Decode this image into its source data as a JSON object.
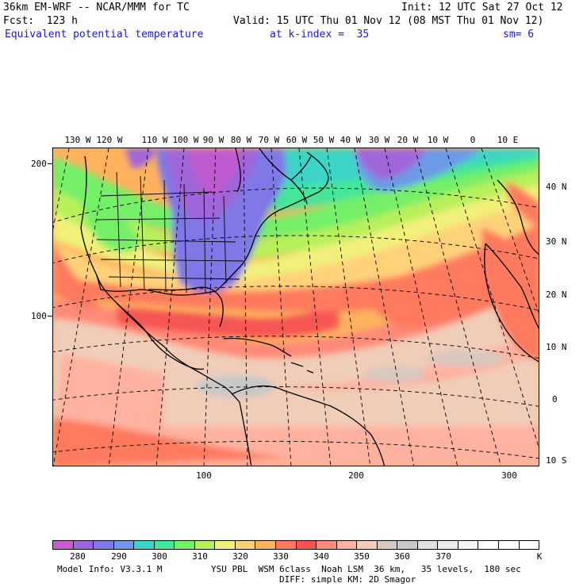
{
  "header": {
    "line1_left": "36km EM-WRF -- NCAR/MMM for TC",
    "line1_right": "Init: 12 UTC Sat 27 Oct 12",
    "line2_left": "Fcst:  123 h",
    "line2_right": "Valid: 15 UTC Thu 01 Nov 12 (08 MST Thu 01 Nov 12)",
    "line3_field": "Equivalent potential temperature",
    "line3_level": "at k-index =  35",
    "line3_smooth": "sm= 6"
  },
  "map": {
    "field": "Equivalent potential temperature",
    "lon_labels": [
      "130 W",
      "120 W",
      "110 W",
      "100 W",
      "90 W",
      "80 W",
      "70 W",
      "60 W",
      "50 W",
      "40 W",
      "30 W",
      "20 W",
      "10 W",
      "0",
      "10 E"
    ],
    "lat_labels": [
      "40 N",
      "30 N",
      "20 N",
      "10 N",
      "0",
      "10 S"
    ],
    "grid_y_labels": [
      "200",
      "100"
    ],
    "grid_x_labels": [
      "100",
      "200",
      "300"
    ],
    "colors": {
      "background_fill": "#ffd27a",
      "cold_core": "#c05ad0",
      "boundary_lines": "#000000",
      "graticule": "#000000"
    }
  },
  "colorbar": {
    "labels": [
      "280",
      "290",
      "300",
      "310",
      "320",
      "330",
      "340",
      "350",
      "360",
      "370"
    ],
    "units": "K",
    "colors": [
      "#c75bd0",
      "#a065d8",
      "#7f78e6",
      "#6c9ae6",
      "#3cd4c8",
      "#44e69a",
      "#76ef68",
      "#b8f05c",
      "#f0f07a",
      "#ffd27a",
      "#ffb25e",
      "#ff7a5e",
      "#f55552",
      "#ff8a78",
      "#ffb2a0",
      "#f0cdb8",
      "#d7c8c0",
      "#c8c8c8",
      "#e0e0e0",
      "#ececec",
      "#f6f6f6",
      "#ffffff",
      "#ffffff",
      "#ffffff"
    ]
  },
  "footer": {
    "model_info": "Model Info: V3.3.1 M",
    "physics": "YSU PBL  WSM 6class  Noah LSM  36 km,   35 levels,  180 sec",
    "diff": "DIFF: simple KM: 2D Smagor"
  }
}
